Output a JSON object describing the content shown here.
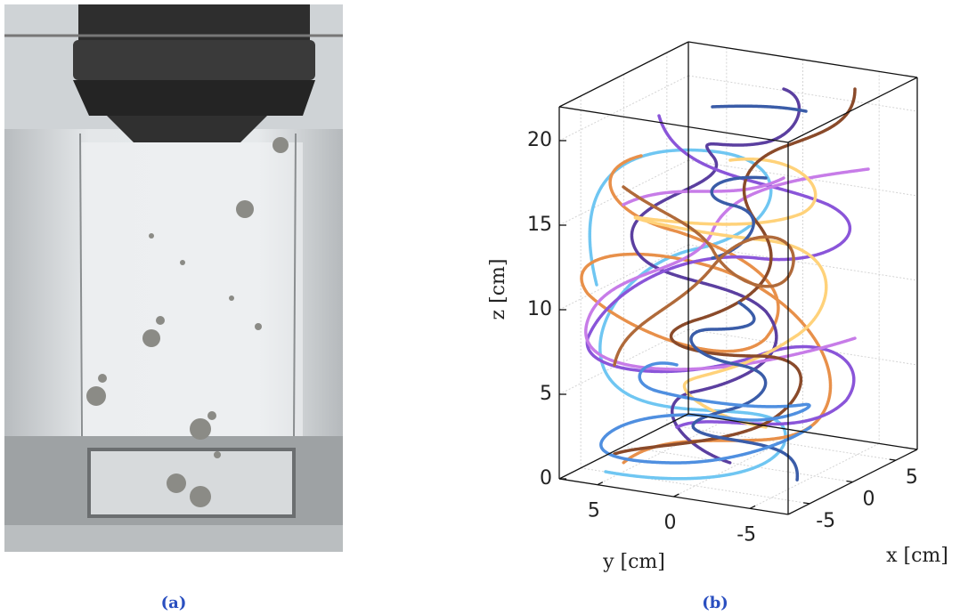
{
  "captions": [
    "(a)",
    "(b)"
  ],
  "chart_data": {
    "type": "line3d",
    "xlabel": "x [cm]",
    "ylabel": "y [cm]",
    "zlabel": "z [cm]",
    "xlim": [
      -7.5,
      7.5
    ],
    "xticks": [
      -5,
      0,
      5
    ],
    "ylim": [
      7.5,
      -7.5
    ],
    "yticks": [
      5,
      0,
      -5
    ],
    "zlim": [
      0,
      22
    ],
    "zticks": [
      0,
      5,
      10,
      15,
      20
    ],
    "grid": true
  }
}
